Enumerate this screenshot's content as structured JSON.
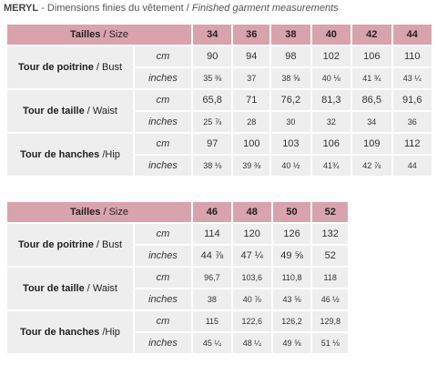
{
  "title": {
    "brand": "MERYL",
    "sep": " - ",
    "fr": "Dimensions finies du vêtement / ",
    "en": "Finished garment measurements"
  },
  "table1": {
    "header": {
      "fr": "Tailles",
      "en": " / Size",
      "sizes": [
        "34",
        "36",
        "38",
        "40",
        "42",
        "44"
      ]
    },
    "rows": [
      {
        "fr": "Tour de poitrine",
        "en": " / Bust",
        "cm": [
          "90",
          "94",
          "98",
          "102",
          "106",
          "110"
        ],
        "inches": [
          "35 ⅜",
          "37",
          "38 ⅝",
          "40 ⅛",
          "41 ¾",
          "43 ¼"
        ]
      },
      {
        "fr": "Tour de taille",
        "en": " / Waist",
        "cm": [
          "65,8",
          "71",
          "76,2",
          "81,3",
          "86,5",
          "91,6"
        ],
        "inches": [
          "25 ⅞",
          "28",
          "30",
          "32",
          "34",
          "36"
        ]
      },
      {
        "fr": "Tour de hanches",
        "en": " /Hip",
        "cm": [
          "97",
          "100",
          "103",
          "106",
          "109",
          "112"
        ],
        "inches": [
          "38 ⅛",
          "39 ⅜",
          "40 ½",
          "41¾",
          "42 ⅞",
          "44"
        ]
      }
    ]
  },
  "table2": {
    "header": {
      "fr": "Tailles",
      "en": " / Size",
      "sizes": [
        "46",
        "48",
        "50",
        "52"
      ]
    },
    "rows": [
      {
        "fr": "Tour de poitrine",
        "en": " / Bust",
        "cm": [
          "114",
          "120",
          "126",
          "132"
        ],
        "inches": [
          "44 ⅞",
          "47 ¼",
          "49 ⅝",
          "52"
        ]
      },
      {
        "fr": "Tour de taille",
        "en": " / Waist",
        "cm": [
          "96,7",
          "103,6",
          "110,8",
          "118"
        ],
        "inches": [
          "38",
          "40 ⅞",
          "43 ⅝",
          "46 ½"
        ]
      },
      {
        "fr": "Tour de hanches",
        "en": " /Hip",
        "cm": [
          "115",
          "122,6",
          "126,2",
          "129,8"
        ],
        "inches": [
          "45 ¼",
          "48 ¼",
          "49 ⅝",
          "51 ⅛"
        ]
      }
    ]
  },
  "units": {
    "cm": "cm",
    "inches": "inches"
  }
}
